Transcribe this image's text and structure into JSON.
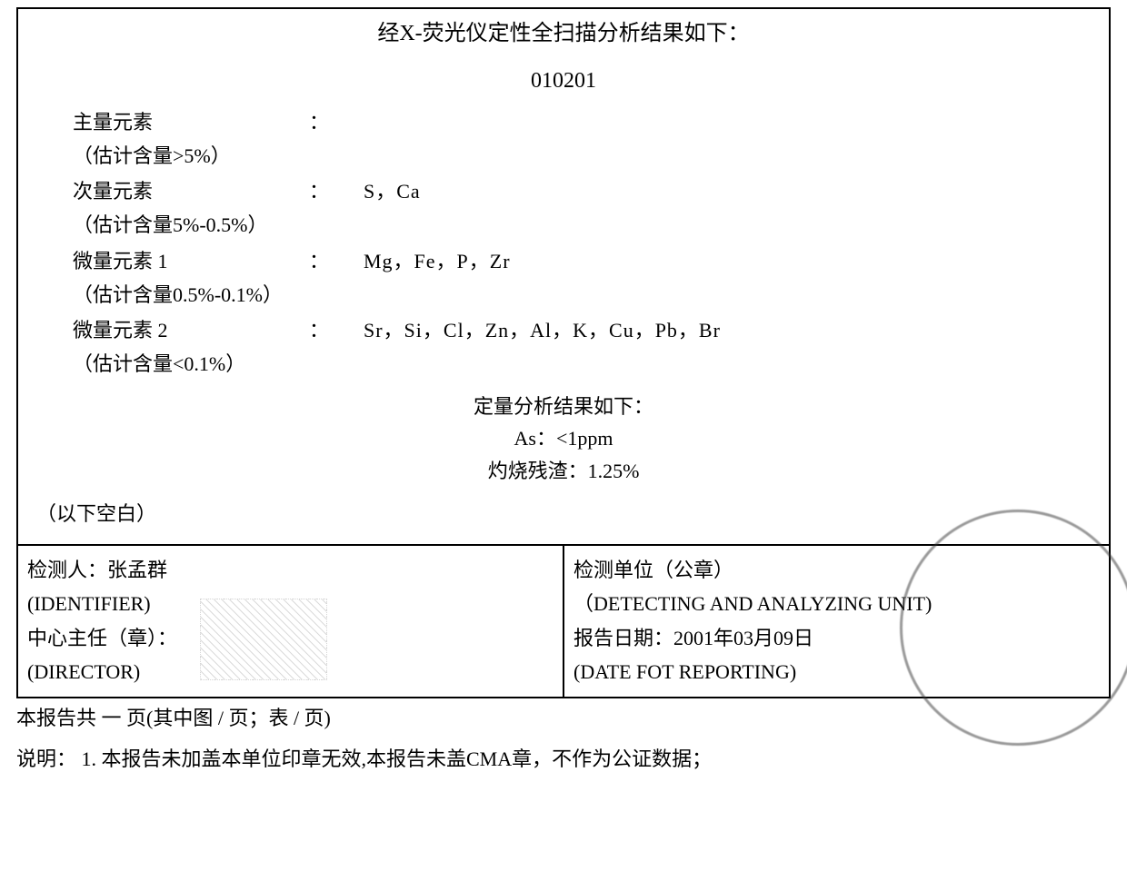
{
  "report": {
    "title": "经X-荧光仪定性全扫描分析结果如下：",
    "sample_id": "010201",
    "elements": {
      "major": {
        "label": "主量元素",
        "note": "（估计含量>5%）",
        "value": ""
      },
      "minor": {
        "label": "次量元素",
        "note": "（估计含量5%-0.5%）",
        "value": "S，Ca"
      },
      "trace1": {
        "label": "微量元素 1",
        "note": "（估计含量0.5%-0.1%）",
        "value": "Mg，Fe，P，Zr"
      },
      "trace2": {
        "label": "微量元素 2",
        "note": "（估计含量<0.1%）",
        "value": "Sr，Si，Cl，Zn，Al，K，Cu，Pb，Br"
      }
    },
    "quant": {
      "title": "定量分析结果如下：",
      "as_line": "As：<1ppm",
      "residue_line": "灼烧残渣：1.25%"
    },
    "blank_note": "（以下空白）",
    "footer": {
      "identifier_label": "检测人：",
      "identifier_name": "张孟群",
      "identifier_en": "(IDENTIFIER)",
      "director_label": "中心主任（章）：",
      "director_en": "(DIRECTOR)",
      "unit_label": "检测单位（公章）",
      "unit_en": "（DETECTING AND ANALYZING UNIT)",
      "date_label": "报告日期：",
      "date_value": "2001年03月09日",
      "date_en": "(DATE FOT REPORTING)"
    },
    "below": {
      "page_info": "本报告共 一 页(其中图 / 页；表 / 页)",
      "remark": "说明： 1. 本报告未加盖本单位印章无效,本报告未盖CMA章，不作为公证数据；"
    }
  },
  "colon": "："
}
